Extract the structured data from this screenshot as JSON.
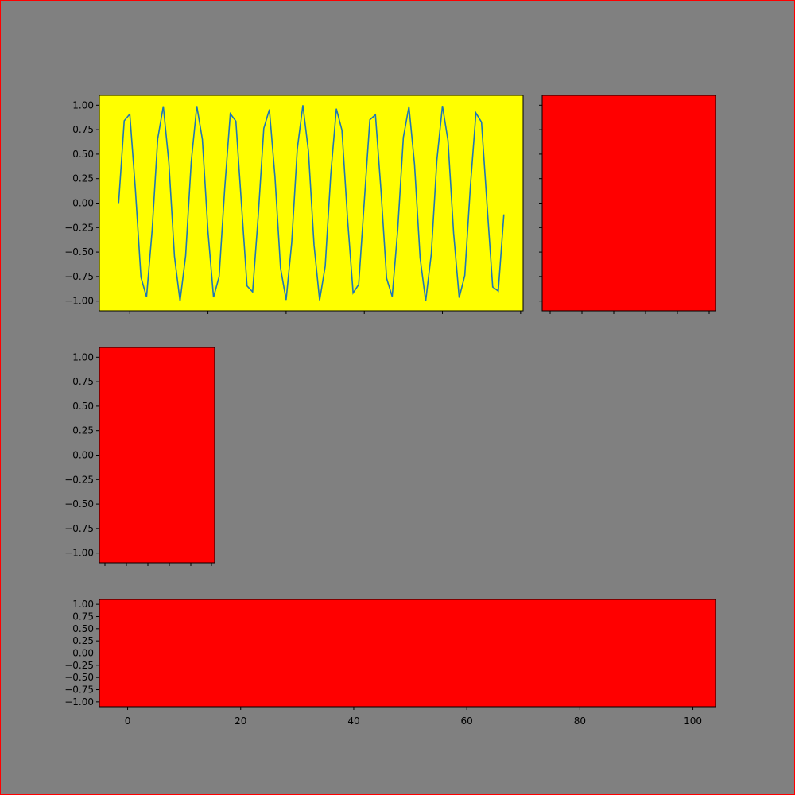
{
  "figure": {
    "background": "#808080",
    "border_color": "#ff0000"
  },
  "chart_data": [
    {
      "type": "line",
      "panel": "top-left",
      "background": "#ffff00",
      "line_color": "#1f77b4",
      "x_start": -2,
      "x_step": 1,
      "y": [
        0.0,
        0.841,
        0.909,
        0.141,
        -0.757,
        -0.959,
        -0.279,
        0.657,
        0.989,
        0.412,
        -0.544,
        -1.0,
        -0.537,
        0.42,
        0.991,
        0.65,
        -0.288,
        -0.961,
        -0.751,
        0.15,
        0.913,
        0.837,
        -0.009,
        -0.846,
        -0.906,
        -0.132,
        0.763,
        0.956,
        0.271,
        -0.664,
        -0.988,
        -0.404,
        0.551,
        1.0,
        0.529,
        -0.428,
        -0.992,
        -0.644,
        0.296,
        0.964,
        0.745,
        -0.159,
        -0.917,
        -0.832,
        0.018,
        0.851,
        0.902,
        0.124,
        -0.768,
        -0.954,
        -0.262,
        0.67,
        0.987,
        0.396,
        -0.559,
        -1.0,
        -0.521,
        0.436,
        0.993,
        0.637,
        -0.305,
        -0.966,
        -0.739,
        0.167,
        0.92,
        0.827,
        -0.027,
        -0.856,
        -0.898,
        -0.115
      ],
      "xlim": [
        -5.45,
        70.45
      ],
      "ylim": [
        -1.1,
        1.1
      ],
      "yticks": [
        {
          "value": 1.0,
          "label": "1.00"
        },
        {
          "value": 0.75,
          "label": "0.75"
        },
        {
          "value": 0.5,
          "label": "0.50"
        },
        {
          "value": 0.25,
          "label": "0.25"
        },
        {
          "value": 0.0,
          "label": "0.00"
        },
        {
          "value": -0.25,
          "label": "−0.25"
        },
        {
          "value": -0.5,
          "label": "−0.50"
        },
        {
          "value": -0.75,
          "label": "−0.75"
        },
        {
          "value": -1.0,
          "label": "−1.00"
        }
      ],
      "xticks": [
        0,
        14,
        28,
        42,
        56,
        70
      ],
      "show_xticklabels": false
    },
    {
      "type": "area",
      "panel": "top-right",
      "fill": "#ff0000",
      "show_yticklabels": false,
      "show_xticklabels": false
    },
    {
      "type": "area",
      "panel": "middle-left",
      "fill": "#ff0000",
      "ylim": [
        -1.1,
        1.1
      ],
      "yticks": [
        {
          "value": 1.0,
          "label": "1.00"
        },
        {
          "value": 0.75,
          "label": "0.75"
        },
        {
          "value": 0.5,
          "label": "0.50"
        },
        {
          "value": 0.25,
          "label": "0.25"
        },
        {
          "value": 0.0,
          "label": "0.00"
        },
        {
          "value": -0.25,
          "label": "−0.25"
        },
        {
          "value": -0.5,
          "label": "−0.50"
        },
        {
          "value": -0.75,
          "label": "−0.75"
        },
        {
          "value": -1.0,
          "label": "−1.00"
        }
      ],
      "show_xticklabels": false
    },
    {
      "type": "area",
      "panel": "bottom",
      "fill": "#ff0000",
      "xlim": [
        -5,
        104
      ],
      "ylim": [
        -1.1,
        1.1
      ],
      "xticks": [
        {
          "value": 0,
          "label": "0"
        },
        {
          "value": 20,
          "label": "20"
        },
        {
          "value": 40,
          "label": "40"
        },
        {
          "value": 60,
          "label": "60"
        },
        {
          "value": 80,
          "label": "80"
        },
        {
          "value": 100,
          "label": "100"
        }
      ],
      "yticks": [
        {
          "value": 1.0,
          "label": "1.00"
        },
        {
          "value": 0.75,
          "label": "0.75"
        },
        {
          "value": 0.5,
          "label": "0.50"
        },
        {
          "value": 0.25,
          "label": "0.25"
        },
        {
          "value": 0.0,
          "label": "0.00"
        },
        {
          "value": -0.25,
          "label": "−0.25"
        },
        {
          "value": -0.5,
          "label": "−0.50"
        },
        {
          "value": -0.75,
          "label": "−0.75"
        },
        {
          "value": -1.0,
          "label": "−1.00"
        }
      ]
    }
  ]
}
